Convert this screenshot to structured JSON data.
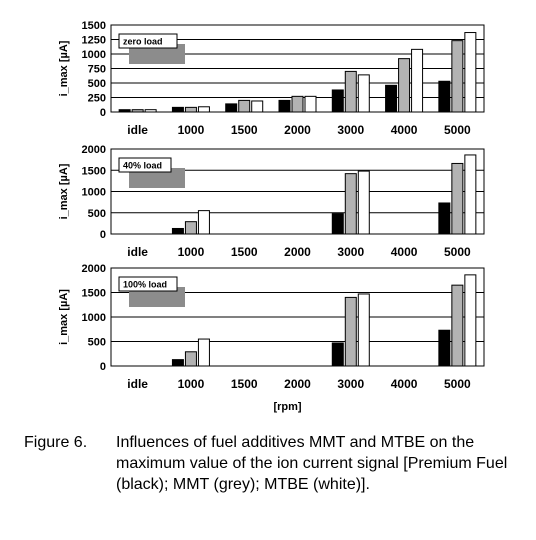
{
  "chart_data": [
    {
      "type": "bar",
      "annotation": "zero load",
      "ylabel": "i_max [µA]",
      "ylim": [
        0,
        1500
      ],
      "yticks": [
        0,
        250,
        500,
        750,
        1000,
        1250,
        1500
      ],
      "grid": true,
      "categories": [
        "idle",
        "1000",
        "1500",
        "2000",
        "3000",
        "4000",
        "5000"
      ],
      "series": [
        {
          "values": [
            40,
            80,
            140,
            200,
            380,
            460,
            530
          ],
          "color": "#000000"
        },
        {
          "values": [
            40,
            80,
            200,
            270,
            700,
            920,
            1230
          ],
          "color": "#b3b3b3"
        },
        {
          "values": [
            40,
            90,
            190,
            270,
            640,
            1080,
            1370
          ],
          "color": "#ffffff"
        }
      ]
    },
    {
      "type": "bar",
      "annotation": "40% load",
      "ylabel": "i_max [µA]",
      "ylim": [
        0,
        2000
      ],
      "yticks": [
        0,
        500,
        1000,
        1500,
        2000
      ],
      "grid": true,
      "categories": [
        "idle",
        "1000",
        "1500",
        "2000",
        "3000",
        "4000",
        "5000"
      ],
      "series": [
        {
          "values": [
            0,
            130,
            0,
            0,
            480,
            0,
            730
          ],
          "color": "#000000"
        },
        {
          "values": [
            0,
            290,
            0,
            0,
            1420,
            0,
            1660
          ],
          "color": "#b3b3b3"
        },
        {
          "values": [
            0,
            550,
            0,
            0,
            1480,
            0,
            1860
          ],
          "color": "#ffffff"
        }
      ]
    },
    {
      "type": "bar",
      "annotation": "100% load",
      "ylabel": "i_max [µA]",
      "xlabel": "[rpm]",
      "ylim": [
        0,
        2000
      ],
      "yticks": [
        0,
        500,
        1000,
        1500,
        2000
      ],
      "grid": true,
      "categories": [
        "idle",
        "1000",
        "1500",
        "2000",
        "3000",
        "4000",
        "5000"
      ],
      "series": [
        {
          "values": [
            0,
            130,
            0,
            0,
            470,
            0,
            730
          ],
          "color": "#000000"
        },
        {
          "values": [
            0,
            290,
            0,
            0,
            1400,
            0,
            1650
          ],
          "color": "#b3b3b3"
        },
        {
          "values": [
            0,
            550,
            0,
            0,
            1470,
            0,
            1860
          ],
          "color": "#ffffff"
        }
      ]
    }
  ],
  "legend_swatch_color": "#8c8c8c",
  "caption": {
    "number": "Figure 6.",
    "text": "Influences of fuel additives MMT and MTBE on the maximum value of the ion current signal [Premium Fuel (black); MMT (grey); MTBE (white)]."
  }
}
